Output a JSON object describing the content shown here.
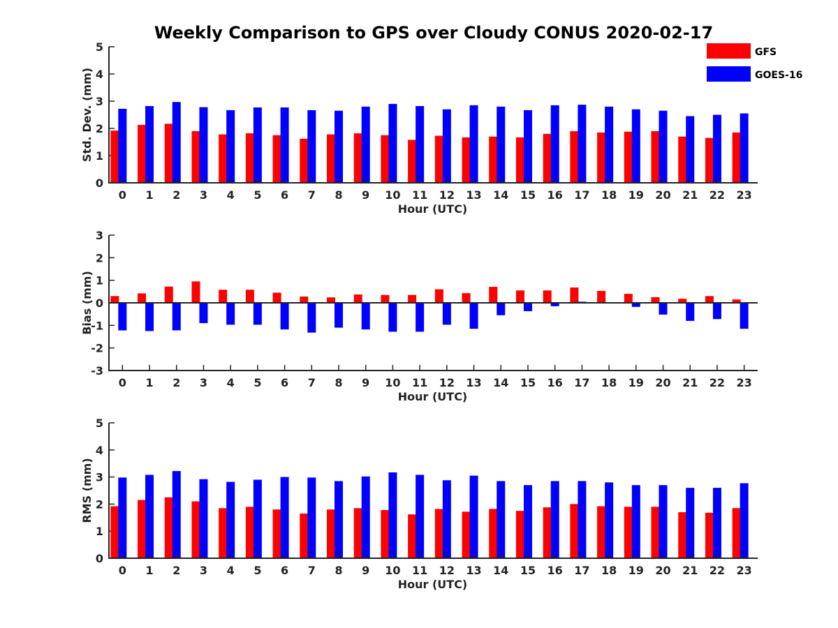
{
  "chart_data": {
    "type": "bar",
    "title": "Weekly Comparison to GPS over Cloudy CONUS 2020-02-17",
    "legend": {
      "placement": "top-right",
      "entries": [
        {
          "name": "GFS",
          "color": "#ff0000"
        },
        {
          "name": "GOES-16",
          "color": "#0000ff"
        }
      ]
    },
    "categories": [
      "0",
      "1",
      "2",
      "3",
      "4",
      "5",
      "6",
      "7",
      "8",
      "9",
      "10",
      "11",
      "12",
      "13",
      "14",
      "15",
      "16",
      "17",
      "18",
      "19",
      "20",
      "21",
      "22",
      "23"
    ],
    "panels": [
      {
        "id": "stddev",
        "ylabel": "Std. Dev. (mm)",
        "xlabel": "Hour (UTC)",
        "ylim": [
          0,
          5
        ],
        "yticks": [
          "0",
          "1",
          "2",
          "3",
          "4",
          "5"
        ],
        "series": [
          {
            "name": "GFS",
            "color": "#ff0000",
            "values": [
              1.92,
              2.13,
              2.17,
              1.9,
              1.78,
              1.82,
              1.75,
              1.62,
              1.78,
              1.82,
              1.75,
              1.58,
              1.73,
              1.67,
              1.7,
              1.67,
              1.8,
              1.9,
              1.85,
              1.88,
              1.9,
              1.7,
              1.65,
              1.85
            ]
          },
          {
            "name": "GOES-16",
            "color": "#0000ff",
            "values": [
              2.72,
              2.82,
              2.97,
              2.78,
              2.67,
              2.77,
              2.77,
              2.67,
              2.65,
              2.8,
              2.9,
              2.82,
              2.7,
              2.85,
              2.8,
              2.67,
              2.85,
              2.87,
              2.8,
              2.7,
              2.65,
              2.45,
              2.5,
              2.55
            ]
          }
        ]
      },
      {
        "id": "bias",
        "ylabel": "Bias (mm)",
        "xlabel": "Hour (UTC)",
        "ylim": [
          -3,
          3
        ],
        "yticks": [
          "-3",
          "-2",
          "-1",
          "0",
          "1",
          "2",
          "3"
        ],
        "series": [
          {
            "name": "GFS",
            "color": "#ff0000",
            "values": [
              0.3,
              0.42,
              0.72,
              0.95,
              0.58,
              0.58,
              0.45,
              0.28,
              0.24,
              0.37,
              0.35,
              0.35,
              0.6,
              0.43,
              0.71,
              0.55,
              0.55,
              0.68,
              0.53,
              0.4,
              0.25,
              0.18,
              0.3,
              0.15
            ]
          },
          {
            "name": "GOES-16",
            "color": "#0000ff",
            "values": [
              -1.22,
              -1.25,
              -1.22,
              -0.9,
              -0.97,
              -0.97,
              -1.18,
              -1.32,
              -1.1,
              -1.18,
              -1.28,
              -1.28,
              -0.97,
              -1.15,
              -0.55,
              -0.37,
              -0.15,
              0.05,
              0.0,
              -0.18,
              -0.52,
              -0.8,
              -0.72,
              -1.15
            ]
          }
        ]
      },
      {
        "id": "rms",
        "ylabel": "RMS (mm)",
        "xlabel": "Hour (UTC)",
        "ylim": [
          0,
          5
        ],
        "yticks": [
          "0",
          "1",
          "2",
          "3",
          "4",
          "5"
        ],
        "series": [
          {
            "name": "GFS",
            "color": "#ff0000",
            "values": [
              1.92,
              2.15,
              2.25,
              2.1,
              1.85,
              1.9,
              1.8,
              1.65,
              1.8,
              1.85,
              1.78,
              1.62,
              1.82,
              1.72,
              1.82,
              1.75,
              1.88,
              2.0,
              1.92,
              1.9,
              1.9,
              1.7,
              1.68,
              1.85
            ]
          },
          {
            "name": "GOES-16",
            "color": "#0000ff",
            "values": [
              2.98,
              3.08,
              3.22,
              2.92,
              2.82,
              2.9,
              3.0,
              2.98,
              2.85,
              3.02,
              3.17,
              3.08,
              2.88,
              3.05,
              2.85,
              2.7,
              2.85,
              2.85,
              2.8,
              2.7,
              2.7,
              2.6,
              2.6,
              2.77
            ]
          }
        ]
      }
    ]
  }
}
